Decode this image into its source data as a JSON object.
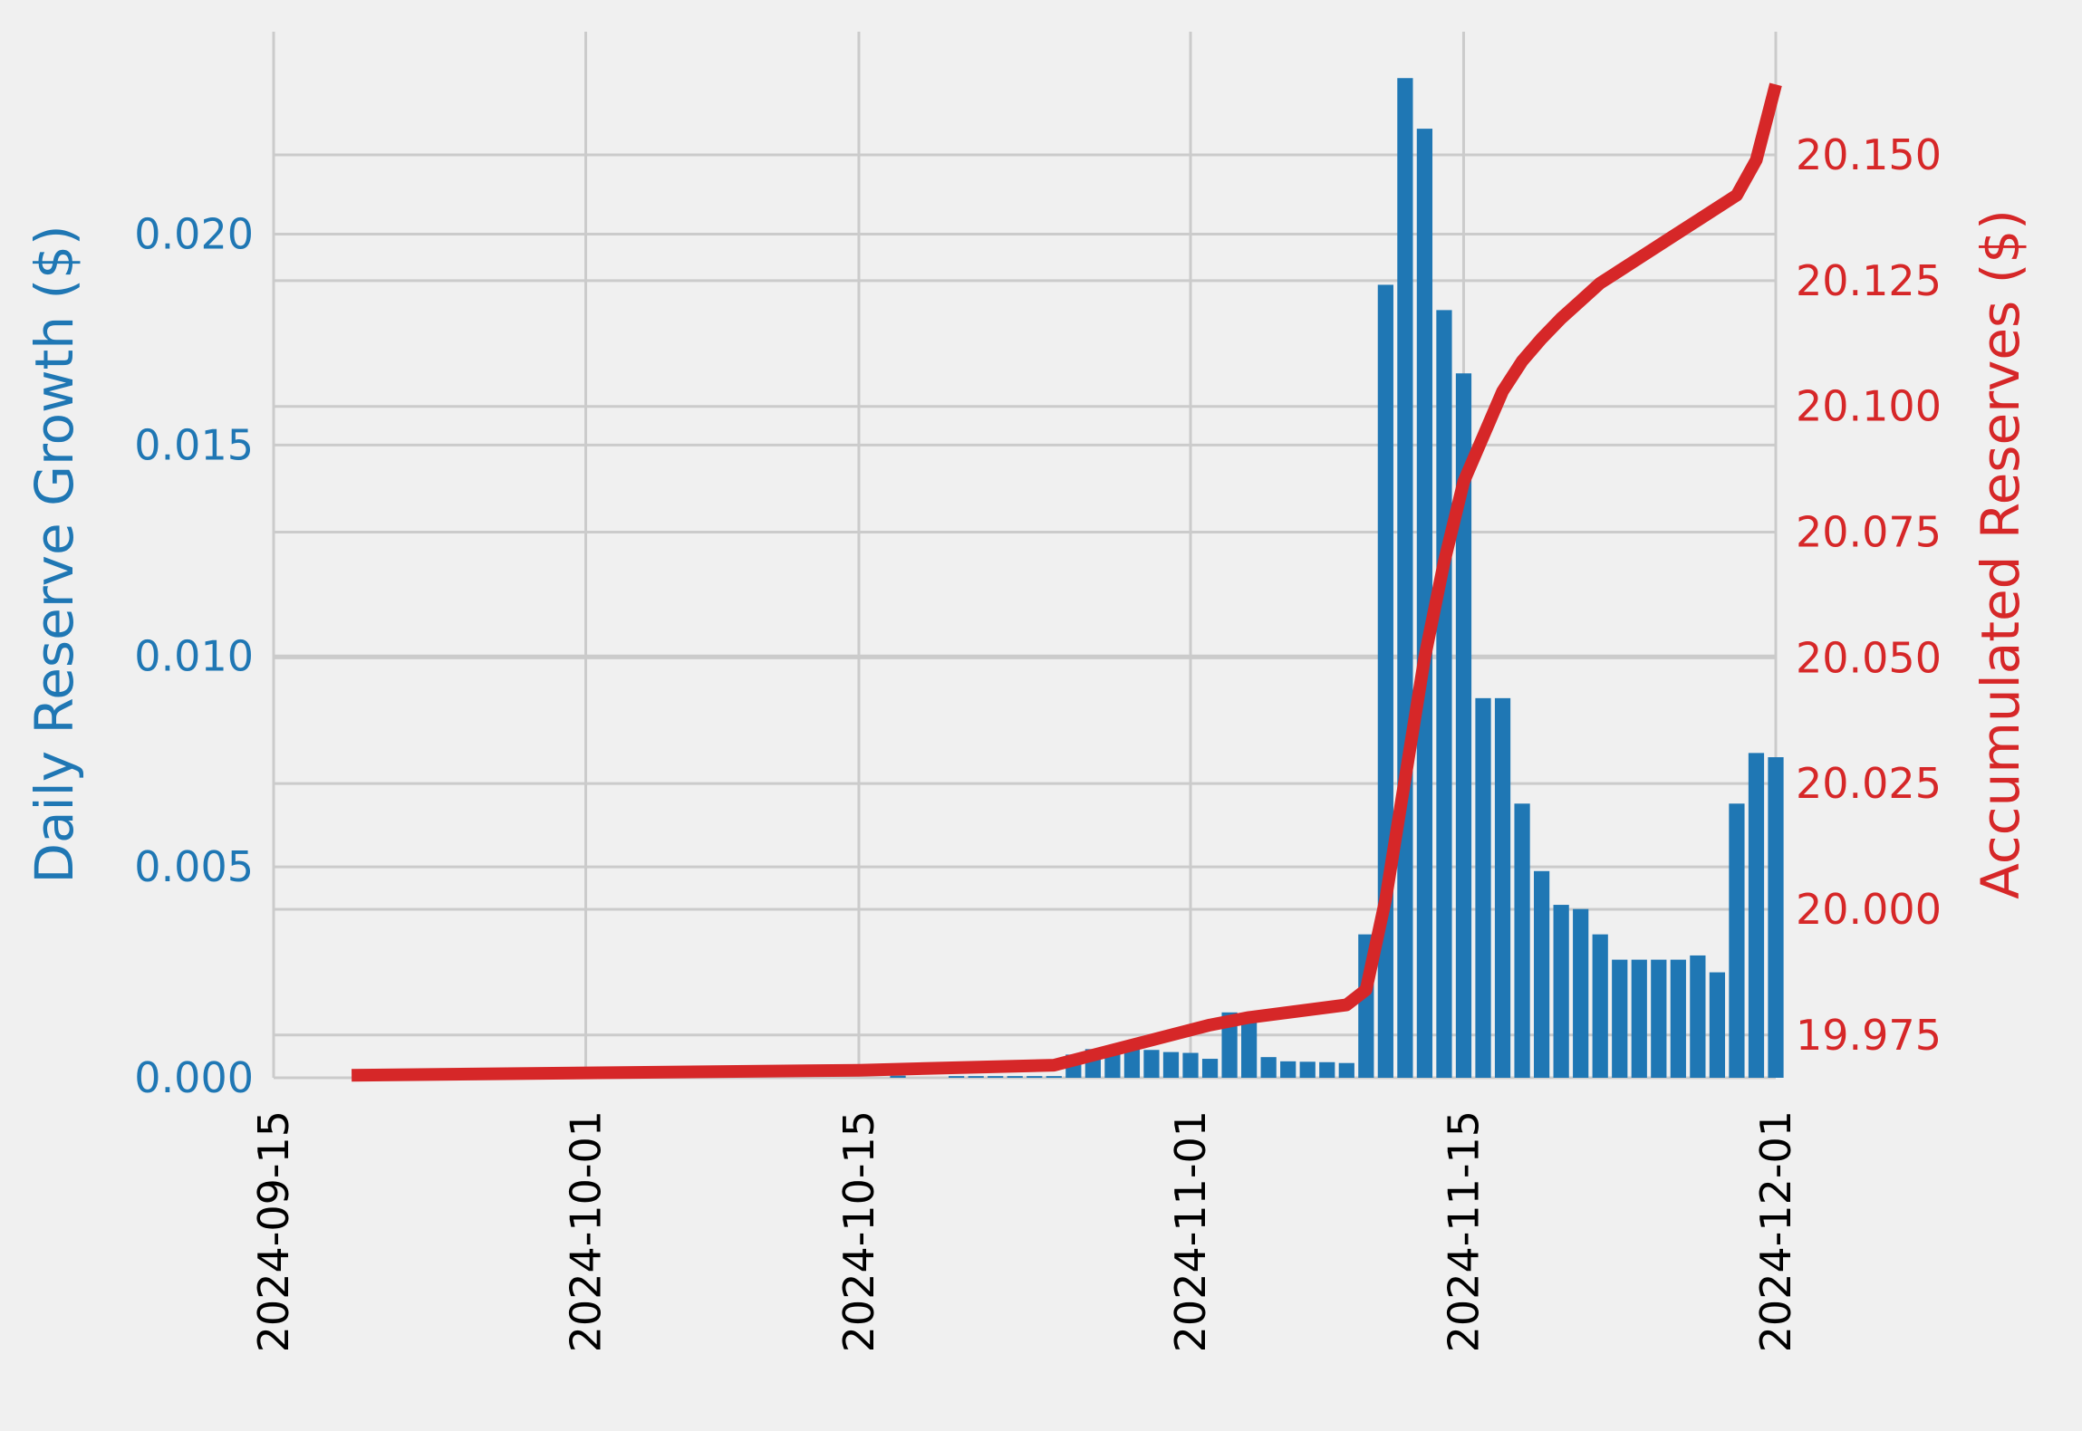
{
  "chart_data": {
    "type": "bar+line",
    "title": "",
    "xlabel": "",
    "x_ticks": [
      "2024-09-15",
      "2024-10-01",
      "2024-10-15",
      "2024-11-01",
      "2024-11-15",
      "2024-12-01"
    ],
    "x_range": [
      "2024-09-15",
      "2024-12-01"
    ],
    "grid": true,
    "left_axis": {
      "label": "Daily Reserve Growth ($)",
      "color": "#1f77b4",
      "ylim": [
        0,
        0.0248
      ],
      "ticks": [
        "0.000",
        "0.005",
        "0.010",
        "0.015",
        "0.020"
      ]
    },
    "right_axis": {
      "label": "Accumulated Reserves ($)",
      "color": "#d62728",
      "ylim": [
        19.9665,
        20.1745
      ],
      "ticks": [
        "19.975",
        "20.000",
        "20.025",
        "20.050",
        "20.075",
        "20.100",
        "20.125",
        "20.150"
      ]
    },
    "series": [
      {
        "kind": "bar",
        "axis": "left",
        "color": "#1f77b4",
        "points": [
          [
            "2024-10-17",
            5e-05
          ],
          [
            "2024-10-20",
            4e-05
          ],
          [
            "2024-10-21",
            4e-05
          ],
          [
            "2024-10-22",
            4e-05
          ],
          [
            "2024-10-23",
            4e-05
          ],
          [
            "2024-10-24",
            4e-05
          ],
          [
            "2024-10-25",
            4e-05
          ],
          [
            "2024-10-26",
            0.00055
          ],
          [
            "2024-10-27",
            0.00068
          ],
          [
            "2024-10-28",
            0.00068
          ],
          [
            "2024-10-29",
            0.00068
          ],
          [
            "2024-10-30",
            0.00066
          ],
          [
            "2024-10-31",
            0.00061
          ],
          [
            "2024-11-01",
            0.00059
          ],
          [
            "2024-11-02",
            0.00045
          ],
          [
            "2024-11-03",
            0.00155
          ],
          [
            "2024-11-04",
            0.00135
          ],
          [
            "2024-11-05",
            0.00049
          ],
          [
            "2024-11-06",
            0.00039
          ],
          [
            "2024-11-07",
            0.00038
          ],
          [
            "2024-11-08",
            0.00037
          ],
          [
            "2024-11-09",
            0.00035
          ],
          [
            "2024-11-10",
            0.0034
          ],
          [
            "2024-11-11",
            0.0188
          ],
          [
            "2024-11-12",
            0.0237
          ],
          [
            "2024-11-13",
            0.0225
          ],
          [
            "2024-11-14",
            0.0182
          ],
          [
            "2024-11-15",
            0.0167
          ],
          [
            "2024-11-16",
            0.009
          ],
          [
            "2024-11-17",
            0.009
          ],
          [
            "2024-11-18",
            0.0065
          ],
          [
            "2024-11-19",
            0.0049
          ],
          [
            "2024-11-20",
            0.0041
          ],
          [
            "2024-11-21",
            0.004
          ],
          [
            "2024-11-22",
            0.0034
          ],
          [
            "2024-11-23",
            0.0028
          ],
          [
            "2024-11-24",
            0.0028
          ],
          [
            "2024-11-25",
            0.0028
          ],
          [
            "2024-11-26",
            0.0028
          ],
          [
            "2024-11-27",
            0.0029
          ],
          [
            "2024-11-28",
            0.0025
          ],
          [
            "2024-11-29",
            0.0065
          ],
          [
            "2024-11-30",
            0.0077
          ],
          [
            "2024-12-01",
            0.0076
          ]
        ]
      },
      {
        "kind": "line",
        "axis": "right",
        "color": "#d62728",
        "points": [
          [
            "2024-09-19",
            19.967
          ],
          [
            "2024-10-15",
            19.968
          ],
          [
            "2024-10-25",
            19.969
          ],
          [
            "2024-11-02",
            19.977
          ],
          [
            "2024-11-04",
            19.9785
          ],
          [
            "2024-11-09",
            19.981
          ],
          [
            "2024-11-10",
            19.984
          ],
          [
            "2024-11-11",
            20.002
          ],
          [
            "2024-11-12",
            20.026
          ],
          [
            "2024-11-13",
            20.05
          ],
          [
            "2024-11-14",
            20.069
          ],
          [
            "2024-11-15",
            20.085
          ],
          [
            "2024-11-16",
            20.094
          ],
          [
            "2024-11-17",
            20.103
          ],
          [
            "2024-11-18",
            20.109
          ],
          [
            "2024-11-19",
            20.1135
          ],
          [
            "2024-11-20",
            20.1175
          ],
          [
            "2024-11-21",
            20.121
          ],
          [
            "2024-11-22",
            20.1245
          ],
          [
            "2024-11-23",
            20.127
          ],
          [
            "2024-11-24",
            20.1295
          ],
          [
            "2024-11-25",
            20.132
          ],
          [
            "2024-11-26",
            20.1345
          ],
          [
            "2024-11-27",
            20.137
          ],
          [
            "2024-11-28",
            20.1395
          ],
          [
            "2024-11-29",
            20.142
          ],
          [
            "2024-11-30",
            20.149
          ],
          [
            "2024-12-01",
            20.164
          ]
        ]
      }
    ]
  }
}
